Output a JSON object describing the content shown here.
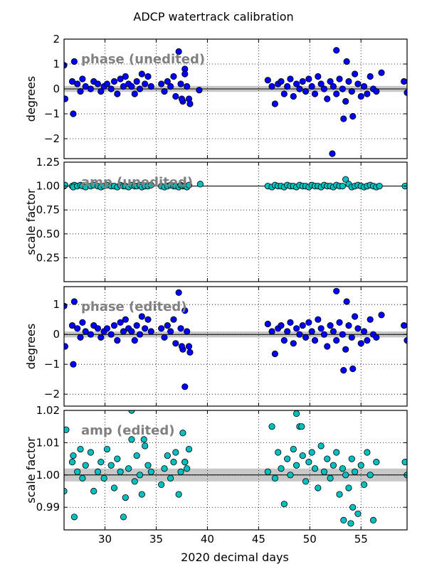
{
  "figure": {
    "title": "ADCP watertrack calibration",
    "xlabel": "2020 decimal days"
  },
  "colors": {
    "phase_marker": "#0000ff",
    "amp_marker": "#00bfbf",
    "reference_band": "#c8c8c8",
    "overlay_text": "#808080"
  },
  "chart_data": [
    {
      "type": "scatter",
      "label": "phase (unedited)",
      "xlabel": "",
      "ylabel": "degrees",
      "xlim": [
        26,
        59.5
      ],
      "ylim": [
        -2.8,
        2.0
      ],
      "xticks": [
        30,
        35,
        40,
        45,
        50,
        55
      ],
      "yticks": [
        -2,
        -1,
        0,
        1,
        2
      ],
      "ytick_labels": [
        "−2",
        "−1",
        "0",
        "1",
        "2"
      ],
      "grid": true,
      "reference_line": 0,
      "reference_band": [
        -0.12,
        0.12
      ],
      "x": [
        26.0,
        26.1,
        26.8,
        27.0,
        26.9,
        27.3,
        27.6,
        27.8,
        28.1,
        28.6,
        28.9,
        29.3,
        29.6,
        29.9,
        30.2,
        30.6,
        30.9,
        31.2,
        31.5,
        31.8,
        32.0,
        32.3,
        32.6,
        32.9,
        33.1,
        33.4,
        33.6,
        33.9,
        34.2,
        34.5,
        35.5,
        35.8,
        36.1,
        36.4,
        36.7,
        36.9,
        37.2,
        37.4,
        37.6,
        37.8,
        38.0,
        38.2,
        37.5,
        37.8,
        38.3,
        39.2,
        45.9,
        46.3,
        46.6,
        46.9,
        47.2,
        47.5,
        47.8,
        48.1,
        48.4,
        48.7,
        49.0,
        49.3,
        49.6,
        49.9,
        50.2,
        50.5,
        50.8,
        51.1,
        51.4,
        51.7,
        52.0,
        52.3,
        52.6,
        52.9,
        53.2,
        53.5,
        53.8,
        54.1,
        54.4,
        54.7,
        55.0,
        55.3,
        55.6,
        55.9,
        56.2,
        56.5,
        52.2,
        52.6,
        53.3,
        53.6,
        54.2,
        57.0,
        59.2,
        59.5
      ],
      "y": [
        0.95,
        -0.4,
        0.3,
        1.1,
        -1.0,
        0.2,
        -0.1,
        0.4,
        0.1,
        0.0,
        0.3,
        0.2,
        -0.1,
        0.1,
        0.2,
        0.0,
        0.3,
        -0.2,
        0.4,
        0.1,
        0.5,
        0.2,
        0.1,
        -0.2,
        0.3,
        0.0,
        0.6,
        0.2,
        0.5,
        0.1,
        0.2,
        -0.1,
        0.3,
        0.1,
        0.5,
        -0.3,
        1.5,
        0.2,
        -0.5,
        0.8,
        0.1,
        -0.4,
        -0.4,
        0.6,
        -0.6,
        -0.05,
        0.35,
        0.1,
        -0.6,
        0.2,
        0.3,
        -0.2,
        0.1,
        0.4,
        -0.3,
        0.2,
        0.0,
        0.3,
        -0.1,
        0.4,
        0.1,
        -0.2,
        0.5,
        0.2,
        0.0,
        -0.4,
        0.3,
        0.1,
        -0.2,
        0.4,
        0.0,
        -0.5,
        0.3,
        -0.1,
        0.6,
        0.2,
        -0.3,
        0.1,
        -0.2,
        0.5,
        0.0,
        -0.1,
        -2.6,
        1.55,
        -1.2,
        1.1,
        -1.1,
        0.65,
        0.3,
        -0.15
      ]
    },
    {
      "type": "scatter",
      "label": "amp (unedited)",
      "xlabel": "",
      "ylabel": "scale factor",
      "xlim": [
        26,
        59.5
      ],
      "ylim": [
        0.0,
        1.25
      ],
      "xticks": [
        30,
        35,
        40,
        45,
        50,
        55
      ],
      "yticks": [
        0.25,
        0.5,
        0.75,
        1.0,
        1.25
      ],
      "ytick_labels": [
        "0.25",
        "0.50",
        "0.75",
        "1.00",
        "1.25"
      ],
      "grid": true,
      "reference_line": 1.0,
      "reference_band": [
        0.998,
        1.002
      ],
      "x": [
        26.0,
        26.1,
        26.8,
        27.0,
        26.9,
        27.3,
        27.6,
        27.8,
        28.1,
        28.6,
        28.9,
        29.3,
        29.6,
        29.9,
        30.2,
        30.6,
        30.9,
        31.2,
        31.5,
        31.8,
        32.0,
        32.3,
        32.6,
        32.9,
        33.1,
        33.4,
        33.6,
        33.9,
        34.2,
        34.5,
        35.5,
        35.8,
        36.1,
        36.4,
        36.7,
        36.9,
        37.2,
        37.4,
        37.6,
        37.8,
        38.0,
        38.2,
        39.3,
        45.9,
        46.3,
        46.6,
        46.9,
        47.2,
        47.5,
        47.8,
        48.1,
        48.4,
        48.7,
        49.0,
        49.3,
        49.6,
        49.9,
        50.2,
        50.5,
        50.8,
        51.1,
        51.4,
        51.7,
        52.0,
        52.3,
        52.6,
        52.9,
        53.2,
        53.5,
        53.8,
        54.1,
        54.4,
        54.7,
        55.0,
        55.3,
        55.6,
        55.9,
        56.2,
        56.5,
        56.8,
        59.3
      ],
      "y": [
        1.0,
        1.01,
        1.0,
        1.01,
        0.99,
        1.0,
        1.01,
        1.0,
        0.99,
        1.0,
        1.01,
        1.0,
        0.99,
        1.0,
        1.01,
        1.0,
        1.0,
        0.99,
        1.01,
        1.0,
        1.0,
        0.99,
        1.01,
        1.0,
        1.0,
        1.01,
        0.99,
        1.0,
        1.0,
        1.01,
        1.0,
        0.99,
        1.0,
        1.01,
        1.0,
        1.0,
        0.99,
        1.01,
        1.0,
        1.0,
        0.99,
        1.01,
        1.02,
        1.0,
        0.99,
        1.01,
        1.0,
        1.0,
        0.99,
        1.01,
        1.0,
        1.0,
        0.99,
        1.01,
        1.0,
        1.0,
        0.99,
        1.01,
        1.0,
        1.0,
        0.99,
        1.01,
        1.0,
        1.0,
        0.99,
        1.01,
        1.0,
        1.0,
        1.07,
        1.02,
        0.99,
        1.0,
        1.01,
        1.0,
        0.99,
        1.0,
        1.01,
        1.0,
        0.99,
        1.0,
        1.0
      ]
    },
    {
      "type": "scatter",
      "label": "phase (edited)",
      "xlabel": "",
      "ylabel": "degrees",
      "xlim": [
        26,
        59.5
      ],
      "ylim": [
        -2.4,
        1.6
      ],
      "xticks": [
        30,
        35,
        40,
        45,
        50,
        55
      ],
      "yticks": [
        -2,
        -1,
        0,
        1
      ],
      "ytick_labels": [
        "−2",
        "−1",
        "0",
        "1"
      ],
      "grid": true,
      "reference_line": 0,
      "reference_band": [
        -0.1,
        0.1
      ],
      "x": [
        26.0,
        26.1,
        26.8,
        27.0,
        26.9,
        27.3,
        27.6,
        27.8,
        28.1,
        28.6,
        28.9,
        29.3,
        29.6,
        29.9,
        30.2,
        30.6,
        30.9,
        31.2,
        31.5,
        31.8,
        32.0,
        32.3,
        32.6,
        32.9,
        33.1,
        33.4,
        33.6,
        33.9,
        34.2,
        34.5,
        35.5,
        35.8,
        36.1,
        36.4,
        36.7,
        36.9,
        37.2,
        37.4,
        37.6,
        37.8,
        38.0,
        38.2,
        37.5,
        37.8,
        38.3,
        45.9,
        46.3,
        46.6,
        46.9,
        47.2,
        47.5,
        47.8,
        48.1,
        48.4,
        48.7,
        49.0,
        49.3,
        49.6,
        49.9,
        50.2,
        50.5,
        50.8,
        51.1,
        51.4,
        51.7,
        52.0,
        52.3,
        52.6,
        52.9,
        53.2,
        53.5,
        53.8,
        54.1,
        54.4,
        54.7,
        55.0,
        55.3,
        55.6,
        55.9,
        56.2,
        56.5,
        52.6,
        53.3,
        53.6,
        54.2,
        57.0,
        59.2,
        59.5
      ],
      "y": [
        0.95,
        -0.4,
        0.3,
        1.1,
        -1.0,
        0.2,
        -0.1,
        0.4,
        0.1,
        0.0,
        0.3,
        0.2,
        -0.1,
        0.1,
        0.2,
        0.0,
        0.3,
        -0.2,
        0.4,
        0.1,
        0.5,
        0.2,
        0.1,
        -0.2,
        0.3,
        0.0,
        0.6,
        0.2,
        0.5,
        0.1,
        0.2,
        -0.1,
        0.3,
        0.1,
        0.5,
        -0.3,
        1.4,
        0.2,
        -0.5,
        0.8,
        0.1,
        -0.4,
        -0.4,
        -1.75,
        -0.6,
        0.35,
        0.1,
        -0.65,
        0.2,
        0.3,
        -0.2,
        0.1,
        0.4,
        -0.3,
        0.2,
        0.0,
        0.3,
        -0.1,
        0.4,
        0.1,
        -0.2,
        0.5,
        0.2,
        0.0,
        -0.4,
        0.3,
        0.1,
        -0.2,
        0.4,
        0.0,
        -0.5,
        0.3,
        -0.1,
        0.6,
        0.2,
        -0.3,
        0.1,
        -0.2,
        0.5,
        0.0,
        -0.1,
        1.45,
        -1.2,
        1.1,
        -1.15,
        0.65,
        0.3,
        -0.2
      ]
    },
    {
      "type": "scatter",
      "label": "amp (edited)",
      "xlabel": "2020 decimal days",
      "ylabel": "scale factor",
      "xlim": [
        26,
        59.5
      ],
      "ylim": [
        0.983,
        1.02
      ],
      "xticks": [
        30,
        35,
        40,
        45,
        50,
        55
      ],
      "xtick_labels": [
        "30",
        "35",
        "40",
        "45",
        "50",
        "55"
      ],
      "yticks": [
        0.99,
        1.0,
        1.01,
        1.02
      ],
      "ytick_labels": [
        "0.99",
        "1.00",
        "1.01",
        "1.02"
      ],
      "grid": true,
      "reference_line": 1.0,
      "reference_band": [
        0.998,
        1.002
      ],
      "x": [
        26.0,
        26.2,
        26.8,
        27.0,
        26.9,
        27.3,
        27.6,
        27.8,
        28.1,
        28.6,
        28.9,
        29.3,
        29.6,
        29.9,
        30.2,
        30.6,
        30.9,
        31.2,
        31.5,
        31.8,
        32.0,
        32.3,
        32.6,
        32.9,
        33.1,
        33.4,
        33.6,
        33.9,
        34.2,
        34.5,
        35.5,
        35.8,
        36.1,
        36.4,
        36.7,
        36.9,
        37.2,
        37.4,
        37.6,
        37.8,
        38.0,
        38.2,
        32.6,
        33.8,
        37.8,
        45.9,
        46.3,
        46.6,
        46.9,
        47.2,
        47.5,
        47.8,
        48.1,
        48.4,
        48.7,
        49.0,
        49.3,
        49.6,
        49.9,
        50.2,
        50.5,
        50.8,
        51.1,
        51.4,
        51.7,
        52.0,
        52.3,
        52.6,
        52.9,
        53.2,
        53.5,
        53.8,
        54.1,
        54.4,
        54.7,
        55.0,
        55.3,
        55.6,
        55.9,
        56.2,
        56.5,
        48.7,
        49.2,
        53.3,
        54.0,
        54.2,
        59.3,
        59.5
      ],
      "y": [
        0.995,
        1.014,
        1.004,
        0.987,
        1.006,
        1.001,
        1.008,
        0.999,
        1.003,
        1.007,
        0.995,
        1.001,
        1.004,
        0.999,
        1.008,
        1.003,
        0.996,
        1.005,
        1.001,
        0.987,
        0.993,
        1.002,
        1.011,
        0.998,
        1.006,
        1.0,
        0.994,
        1.009,
        1.003,
        1.001,
        0.997,
        1.002,
        1.006,
        0.999,
        1.004,
        1.007,
        0.994,
        1.001,
        1.013,
        1.004,
        1.002,
        1.008,
        1.02,
        1.011,
        1.004,
        1.001,
        1.015,
        0.999,
        1.007,
        1.002,
        0.991,
        1.005,
        1.0,
        1.008,
        1.003,
        1.015,
        1.006,
        0.998,
        1.004,
        1.007,
        1.002,
        0.996,
        1.009,
        1.001,
        1.005,
        0.999,
        1.003,
        1.007,
        0.994,
        1.002,
        1.0,
        0.996,
        1.005,
        1.001,
        0.988,
        1.003,
        0.997,
        1.007,
        1.0,
        0.986,
        1.004,
        1.019,
        1.015,
        0.986,
        0.985,
        0.99,
        1.004,
        1.0
      ]
    }
  ]
}
